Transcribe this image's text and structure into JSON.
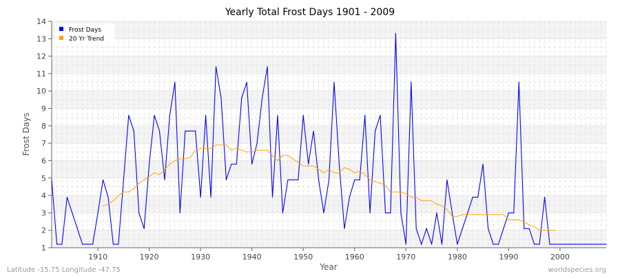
{
  "chart_data": {
    "type": "line",
    "title": "Yearly Total Frost Days 1901 - 2009",
    "xlabel": "Year",
    "ylabel": "Frost Days",
    "xlim": [
      1901,
      2009
    ],
    "ylim": [
      1,
      14
    ],
    "x_ticks": [
      1910,
      1920,
      1930,
      1940,
      1950,
      1960,
      1970,
      1980,
      1990,
      2000
    ],
    "y_ticks": [
      1,
      2,
      3,
      4,
      5,
      6,
      7,
      8,
      9,
      10,
      11,
      12,
      13,
      14
    ],
    "grid": true,
    "legend_position": "top-left",
    "series": [
      {
        "name": "Frost Days",
        "color": "#0000ff",
        "start_year": 1901,
        "values": [
          4.9,
          1.2,
          1.2,
          3.9,
          3.0,
          2.1,
          1.2,
          1.2,
          1.2,
          3.0,
          4.9,
          3.9,
          1.2,
          1.2,
          4.9,
          8.6,
          7.7,
          3.0,
          2.1,
          5.8,
          8.6,
          7.7,
          4.9,
          8.6,
          10.5,
          3.0,
          7.7,
          7.7,
          7.7,
          3.9,
          8.6,
          3.9,
          11.4,
          9.6,
          4.9,
          5.8,
          5.8,
          9.6,
          10.5,
          5.8,
          7.0,
          9.6,
          11.4,
          3.9,
          8.6,
          3.0,
          4.9,
          4.9,
          4.9,
          8.6,
          5.8,
          7.7,
          4.9,
          3.0,
          4.9,
          10.5,
          5.8,
          2.1,
          3.9,
          4.9,
          4.9,
          8.6,
          3.0,
          7.7,
          8.6,
          3.0,
          3.0,
          13.3,
          3.0,
          1.2,
          10.5,
          2.1,
          1.2,
          2.1,
          1.2,
          3.0,
          1.2,
          4.9,
          3.0,
          1.2,
          2.1,
          3.0,
          3.9,
          3.9,
          5.8,
          2.1,
          1.2,
          1.2,
          2.1,
          3.0,
          3.0,
          10.5,
          2.1,
          2.1,
          1.2,
          1.2,
          3.9,
          1.2,
          1.2,
          1.2,
          1.2,
          1.2,
          1.2,
          1.2,
          1.2,
          1.2,
          1.2,
          1.2,
          1.2
        ]
      },
      {
        "name": "20 Yr Trend",
        "color": "#ffa500",
        "start_year": 1911,
        "values": [
          3.4,
          3.5,
          3.7,
          4.0,
          4.2,
          4.2,
          4.4,
          4.7,
          4.9,
          5.1,
          5.3,
          5.2,
          5.5,
          5.8,
          6.0,
          6.1,
          6.1,
          6.2,
          6.6,
          6.7,
          6.7,
          6.7,
          6.9,
          6.9,
          6.9,
          6.6,
          6.7,
          6.6,
          6.5,
          6.5,
          6.6,
          6.6,
          6.6,
          6.3,
          6.0,
          6.3,
          6.3,
          6.1,
          5.9,
          5.7,
          5.7,
          5.7,
          5.5,
          5.3,
          5.5,
          5.3,
          5.3,
          5.6,
          5.5,
          5.3,
          5.4,
          5.2,
          4.9,
          4.8,
          4.7,
          4.6,
          4.2,
          4.2,
          4.2,
          4.1,
          3.9,
          3.9,
          3.7,
          3.7,
          3.7,
          3.5,
          3.4,
          3.2,
          2.8,
          2.8,
          2.9,
          2.9,
          2.9,
          2.9,
          2.9,
          2.9,
          2.9,
          2.9,
          2.9,
          2.6,
          2.6,
          2.6,
          2.5,
          2.3,
          2.2,
          2.0,
          2.0,
          2.0,
          2.0
        ]
      }
    ]
  },
  "footer": {
    "left": "Latitude -15.75 Longitude -47.75",
    "right": "worldspecies.org"
  }
}
